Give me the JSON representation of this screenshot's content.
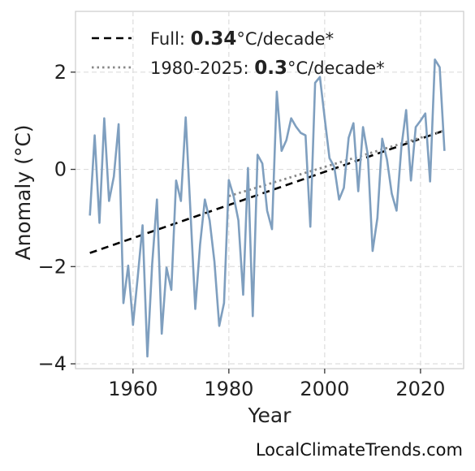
{
  "chart_data": {
    "type": "line",
    "title": "",
    "xlabel": "Year",
    "ylabel": "Anomaly (°C)",
    "xlim": [
      1948,
      2029
    ],
    "ylim": [
      -4.1,
      3.25
    ],
    "xticks": [
      1960,
      1980,
      2000,
      2020
    ],
    "yticks": [
      -4,
      -2,
      0,
      2
    ],
    "ytick_labels": [
      "−4",
      "−2",
      "0",
      "2"
    ],
    "grid": true,
    "legend_position": "top-left",
    "colors": {
      "series": "#7f9fbf",
      "full_trend": "#000000",
      "recent_trend": "#888888"
    },
    "series": [
      {
        "x": [
          1951,
          1952,
          1953,
          1954,
          1955,
          1956,
          1957,
          1958,
          1959,
          1960,
          1961,
          1962,
          1963,
          1964,
          1965,
          1966,
          1967,
          1968,
          1969,
          1970,
          1971,
          1972,
          1973,
          1974,
          1975,
          1976,
          1977,
          1978,
          1979,
          1980,
          1981,
          1982,
          1983,
          1984,
          1985,
          1986,
          1987,
          1988,
          1989,
          1990,
          1991,
          1992,
          1993,
          1994,
          1995,
          1996,
          1997,
          1998,
          1999,
          2000,
          2001,
          2002,
          2003,
          2004,
          2005,
          2006,
          2007,
          2008,
          2009,
          2010,
          2011,
          2012,
          2013,
          2014,
          2015,
          2016,
          2017,
          2018,
          2019,
          2020,
          2021,
          2022,
          2023,
          2024,
          2025
        ],
        "values": [
          -0.95,
          0.7,
          -1.1,
          1.05,
          -0.65,
          -0.15,
          0.93,
          -2.75,
          -1.98,
          -3.2,
          -2.2,
          -1.15,
          -3.85,
          -1.95,
          -0.62,
          -3.38,
          -2.02,
          -2.48,
          -0.23,
          -0.65,
          1.07,
          -0.88,
          -2.87,
          -1.55,
          -0.62,
          -1.05,
          -1.9,
          -3.22,
          -2.75,
          -0.22,
          -0.55,
          -1.05,
          -2.58,
          0.03,
          -3.02,
          0.3,
          0.12,
          -0.85,
          -1.23,
          1.6,
          0.38,
          0.6,
          1.05,
          0.88,
          0.75,
          0.7,
          -1.18,
          1.78,
          1.9,
          1.05,
          0.23,
          0.05,
          -0.62,
          -0.38,
          0.65,
          0.95,
          -0.45,
          0.87,
          0.3,
          -1.68,
          -1.0,
          0.63,
          0.2,
          -0.5,
          -0.85,
          0.45,
          1.22,
          -0.23,
          0.87,
          1.0,
          1.15,
          -0.25,
          2.26,
          2.1,
          0.38
        ]
      }
    ],
    "trends": [
      {
        "label_prefix": "Full: ",
        "rate": "0.34",
        "label_suffix": "°C/decade*",
        "x": [
          1951,
          2025
        ],
        "y": [
          -1.72,
          0.8
        ]
      },
      {
        "label_prefix": "1980-2025: ",
        "rate": "0.3",
        "label_suffix": "°C/decade*",
        "x": [
          1980,
          2025
        ],
        "y": [
          -0.55,
          0.8
        ]
      }
    ]
  },
  "watermark": "LocalClimateTrends.com"
}
